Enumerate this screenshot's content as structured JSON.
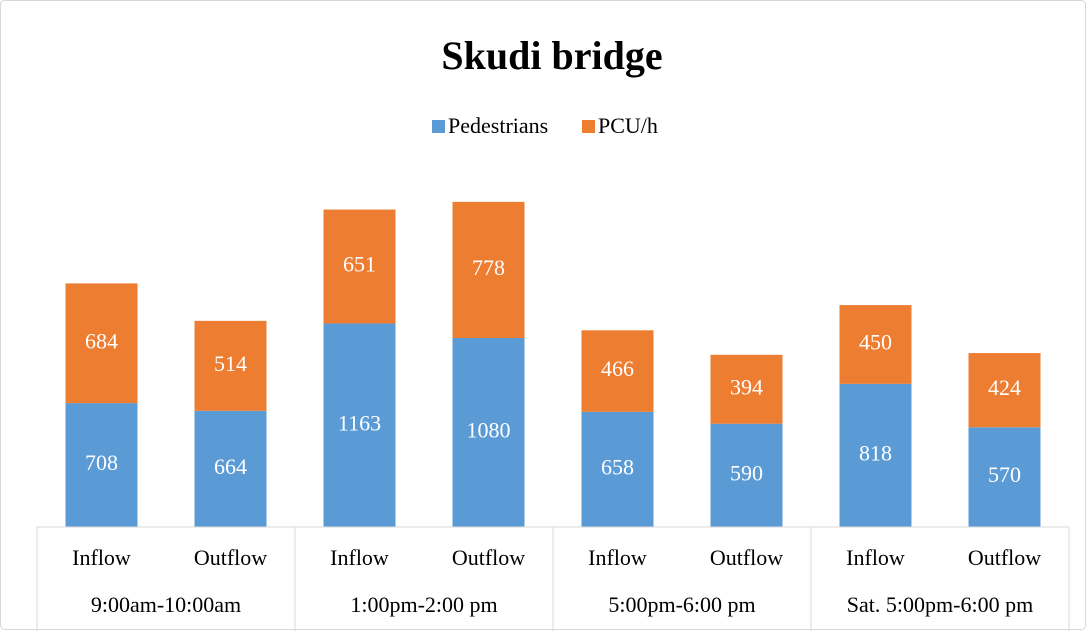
{
  "chart_data": {
    "type": "stacked-bar",
    "title": "Skudi bridge",
    "categories": [
      "Inflow",
      "Outflow",
      "Inflow",
      "Outflow",
      "Inflow",
      "Outflow",
      "Inflow",
      "Outflow"
    ],
    "groups": [
      "9:00am-10:00am",
      "1:00pm-2:00 pm",
      "5:00pm-6:00 pm",
      "Sat. 5:00pm-6:00 pm"
    ],
    "series": [
      {
        "name": "Pedestrians",
        "color": "#5b9bd5",
        "values": [
          708,
          664,
          1163,
          1080,
          658,
          590,
          818,
          570
        ]
      },
      {
        "name": "PCU/h",
        "color": "#ed7d31",
        "values": [
          684,
          514,
          651,
          778,
          466,
          394,
          450,
          424
        ]
      }
    ],
    "legend": "top"
  }
}
